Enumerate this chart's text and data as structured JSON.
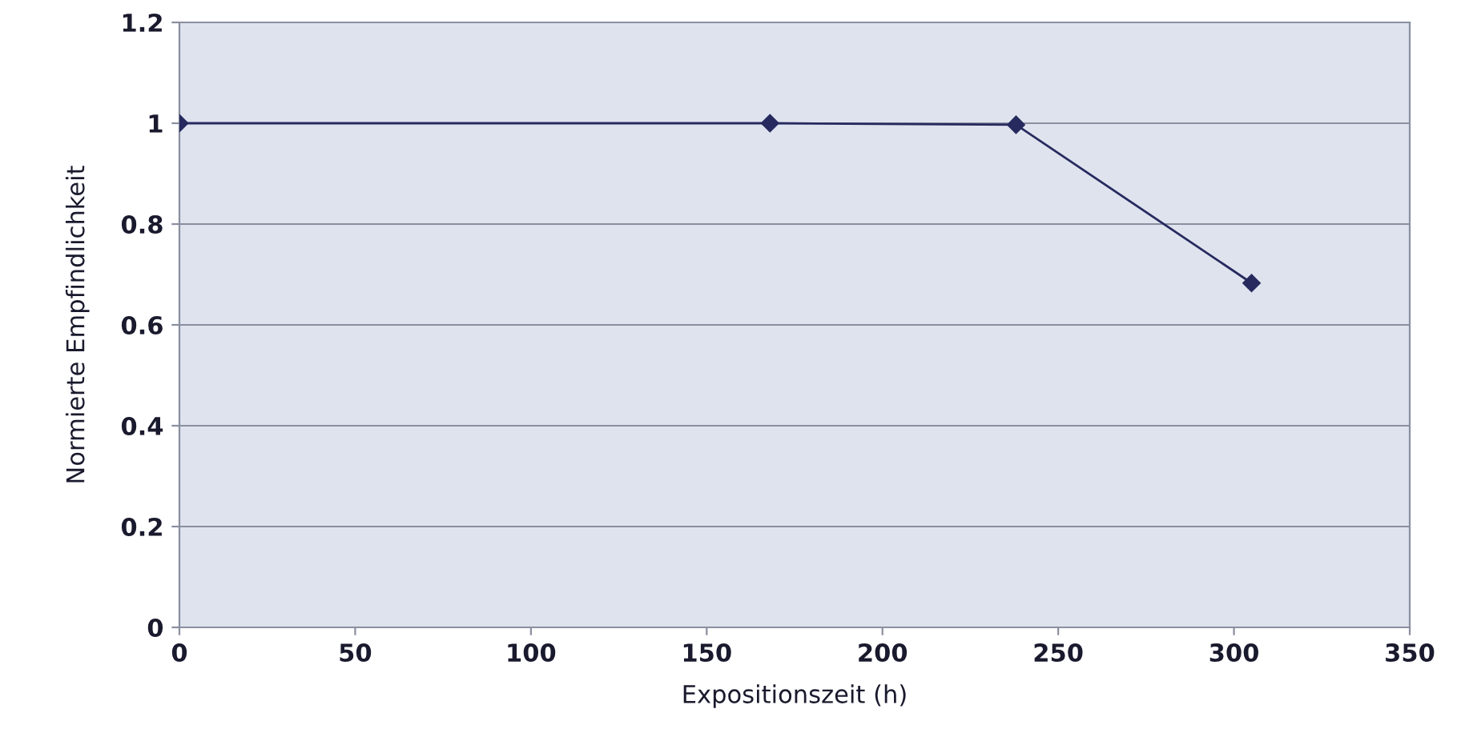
{
  "chart_data": {
    "type": "line",
    "xlabel": "Expositionszeit (h)",
    "ylabel": "Normierte Empfindlichkeit",
    "x": [
      0,
      168,
      238,
      305
    ],
    "series": [
      {
        "color": "#262a5e",
        "values": [
          1.0,
          1.0,
          0.997,
          0.683
        ]
      }
    ],
    "xlim": [
      0,
      350
    ],
    "xticks": [
      0,
      50,
      100,
      150,
      200,
      250,
      300,
      350
    ],
    "ylim": [
      0,
      1.2
    ],
    "yticks": [
      0,
      0.2,
      0.4,
      0.6,
      0.8,
      1,
      1.2
    ],
    "grid": "y",
    "marker": "diamond",
    "line_style": "solid",
    "legend": false
  }
}
